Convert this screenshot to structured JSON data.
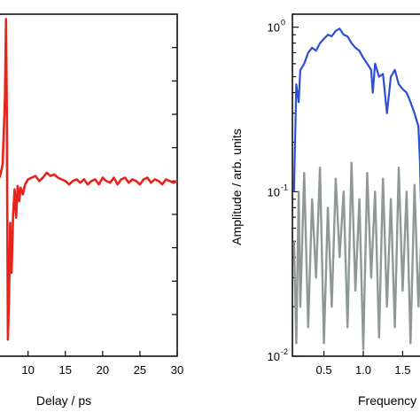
{
  "chart_data": [
    {
      "type": "line",
      "xlabel": "Delay / ps",
      "ylabel": "",
      "xlim": [
        6,
        30
      ],
      "ylim": [
        -1.05,
        1.0
      ],
      "x_ticks": [
        10,
        15,
        20,
        25,
        30
      ],
      "x_tick_labels": [
        "10",
        "15",
        "20",
        "25",
        "30"
      ],
      "y_ticks_unlabeled": [
        -0.8,
        -0.6,
        -0.4,
        -0.2,
        0.0,
        0.2,
        0.4,
        0.6,
        0.8
      ],
      "grid": false,
      "series": [
        {
          "color": "#e8231b",
          "x": [
            6.2,
            6.6,
            6.9,
            7.05,
            7.15,
            7.3,
            7.45,
            7.6,
            7.8,
            8.0,
            8.2,
            8.4,
            8.6,
            8.8,
            9.0,
            9.3,
            9.6,
            10.0,
            10.5,
            11.0,
            11.5,
            12.0,
            12.5,
            13.0,
            13.5,
            14.0,
            14.5,
            15.0,
            15.5,
            16.0,
            16.5,
            17.0,
            17.5,
            18.0,
            18.5,
            19.0,
            19.5,
            20.0,
            20.5,
            21.0,
            21.5,
            22.0,
            22.5,
            23.0,
            23.5,
            24.0,
            24.5,
            25.0,
            25.5,
            26.0,
            26.5,
            27.0,
            27.5,
            28.0,
            28.5,
            29.0,
            29.5,
            30.0
          ],
          "y": [
            0.02,
            0.1,
            0.5,
            0.97,
            0.4,
            -0.95,
            -0.7,
            -0.25,
            -0.55,
            -0.2,
            -0.05,
            -0.22,
            -0.03,
            -0.12,
            -0.04,
            -0.08,
            -0.02,
            0.01,
            0.02,
            0.03,
            0.0,
            0.02,
            0.05,
            0.03,
            0.04,
            0.02,
            0.01,
            0.0,
            -0.02,
            0.0,
            0.01,
            -0.01,
            0.01,
            -0.02,
            0.0,
            0.01,
            -0.02,
            0.02,
            0.0,
            -0.01,
            0.02,
            -0.02,
            0.01,
            0.02,
            -0.01,
            0.01,
            0.0,
            -0.02,
            0.01,
            0.02,
            -0.01,
            0.01,
            0.0,
            -0.02,
            0.01,
            0.0,
            -0.01,
            0.0
          ]
        }
      ]
    },
    {
      "type": "line",
      "xlabel": "Frequency",
      "ylabel": "Amplitude / arb. units",
      "xlim": [
        0.1,
        1.9
      ],
      "ylim": [
        0.01,
        1.2
      ],
      "y_scale": "log",
      "x_ticks": [
        0.5,
        1.0,
        1.5
      ],
      "x_tick_labels": [
        "0.5",
        "1.0",
        "1.5"
      ],
      "y_ticks": [
        0.01,
        0.1,
        1
      ],
      "y_tick_labels": [
        "10",
        "10",
        "10"
      ],
      "y_tick_exponents": [
        "-2",
        "-1",
        "0"
      ],
      "grid": false,
      "series": [
        {
          "color": "#2b4fd8",
          "x": [
            0.12,
            0.15,
            0.18,
            0.2,
            0.25,
            0.3,
            0.35,
            0.4,
            0.45,
            0.5,
            0.55,
            0.6,
            0.65,
            0.7,
            0.75,
            0.8,
            0.85,
            0.9,
            0.95,
            1.0,
            1.05,
            1.1,
            1.12,
            1.15,
            1.2,
            1.25,
            1.3,
            1.35,
            1.4,
            1.45,
            1.5,
            1.55,
            1.6,
            1.65,
            1.7,
            1.72,
            1.75
          ],
          "y": [
            0.1,
            0.45,
            0.35,
            0.55,
            0.6,
            0.7,
            0.75,
            0.72,
            0.8,
            0.85,
            0.9,
            0.88,
            0.95,
            0.98,
            0.9,
            0.88,
            0.8,
            0.75,
            0.72,
            0.65,
            0.6,
            0.55,
            0.4,
            0.6,
            0.5,
            0.52,
            0.3,
            0.5,
            0.55,
            0.45,
            0.42,
            0.4,
            0.35,
            0.3,
            0.25,
            0.15,
            0.035
          ]
        },
        {
          "color": "#8e9895",
          "x": [
            0.12,
            0.15,
            0.18,
            0.2,
            0.25,
            0.3,
            0.35,
            0.4,
            0.45,
            0.5,
            0.55,
            0.6,
            0.65,
            0.7,
            0.75,
            0.8,
            0.85,
            0.9,
            0.95,
            1.0,
            1.05,
            1.1,
            1.15,
            1.2,
            1.25,
            1.3,
            1.35,
            1.4,
            1.45,
            1.5,
            1.55,
            1.6,
            1.65,
            1.7,
            1.75
          ],
          "y": [
            0.05,
            0.012,
            0.1,
            0.02,
            0.13,
            0.015,
            0.09,
            0.03,
            0.14,
            0.012,
            0.08,
            0.02,
            0.12,
            0.04,
            0.1,
            0.015,
            0.15,
            0.025,
            0.09,
            0.011,
            0.13,
            0.03,
            0.1,
            0.013,
            0.12,
            0.02,
            0.09,
            0.015,
            0.14,
            0.025,
            0.1,
            0.012,
            0.11,
            0.02,
            0.08
          ]
        }
      ]
    }
  ]
}
